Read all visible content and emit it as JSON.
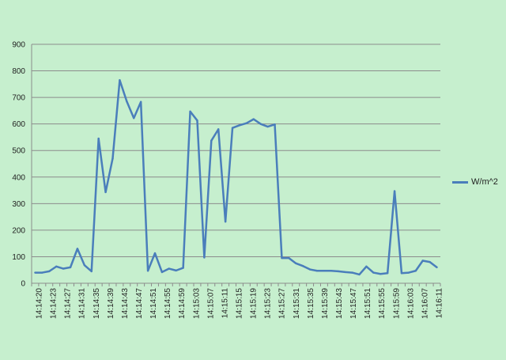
{
  "chart_data": {
    "type": "line",
    "title": "",
    "xlabel": "",
    "ylabel": "",
    "ylim": [
      0,
      900
    ],
    "y_ticks": [
      0,
      100,
      200,
      300,
      400,
      500,
      600,
      700,
      800,
      900
    ],
    "grid": "horizontal",
    "legend_position": "right",
    "x_tick_labels": [
      "14:14:20",
      "14:14:23",
      "14:14:27",
      "14:14:31",
      "14:14:35",
      "14:14:39",
      "14:14:43",
      "14:14:47",
      "14:14:51",
      "14:14:55",
      "14:14:59",
      "14:15:03",
      "14:15:07",
      "14:15:11",
      "14:15:15",
      "14:15:19",
      "14:15:23",
      "14:15:27",
      "14:15:31",
      "14:15:35",
      "14:15:39",
      "14:15:43",
      "14:15:47",
      "14:15:51",
      "14:15:55",
      "14:15:59",
      "14:16:03",
      "14:16:07",
      "14:16:11"
    ],
    "series": [
      {
        "name": "W/m^2",
        "color": "#4a7ebb",
        "values": [
          40,
          40,
          45,
          63,
          55,
          60,
          130,
          68,
          45,
          545,
          343,
          470,
          765,
          685,
          622,
          683,
          47,
          113,
          42,
          55,
          48,
          58,
          647,
          613,
          97,
          537,
          580,
          232,
          585,
          595,
          603,
          618,
          600,
          590,
          598,
          95,
          95,
          75,
          65,
          52,
          47,
          47,
          47,
          45,
          42,
          40,
          33,
          63,
          40,
          35,
          38,
          347,
          38,
          40,
          47,
          85,
          80,
          60
        ]
      }
    ]
  }
}
